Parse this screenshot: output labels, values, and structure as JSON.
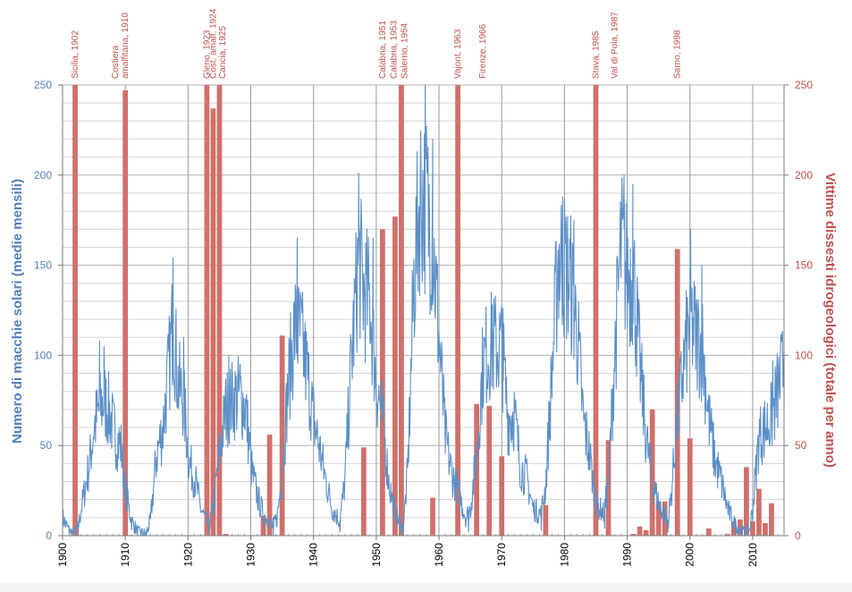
{
  "chart_data": {
    "type": "bar+line",
    "title": "",
    "xlabel": "",
    "ylabel_left": "Numero di macchie solari (medie mensili)",
    "ylabel_right": "Vittime dissesti idrogeologici (totale per anno)",
    "xlim": [
      1900,
      2015
    ],
    "ylim_left": [
      0,
      250
    ],
    "ylim_right": [
      0,
      250
    ],
    "x_ticks": [
      1900,
      1910,
      1920,
      1930,
      1940,
      1950,
      1960,
      1970,
      1980,
      1990,
      2000,
      2010
    ],
    "y_ticks_left": [
      0,
      50,
      100,
      150,
      200,
      250
    ],
    "y_ticks_right": [
      0,
      50,
      100,
      150,
      200,
      250
    ],
    "grid": true,
    "colors": {
      "sunspots": "#5b8fc7",
      "victims": "#d0706a",
      "left_axis": "#4f81bd",
      "right_axis": "#c0504d"
    },
    "series": [
      {
        "kind": "bars",
        "axis": "right",
        "points": [
          {
            "x": 1902,
            "y": 250
          },
          {
            "x": 1910,
            "y": 247
          },
          {
            "x": 1923,
            "y": 250
          },
          {
            "x": 1924,
            "y": 237
          },
          {
            "x": 1925,
            "y": 250
          },
          {
            "x": 1926,
            "y": 1
          },
          {
            "x": 1932,
            "y": 11
          },
          {
            "x": 1933,
            "y": 56
          },
          {
            "x": 1935,
            "y": 111
          },
          {
            "x": 1948,
            "y": 49
          },
          {
            "x": 1951,
            "y": 170
          },
          {
            "x": 1953,
            "y": 177
          },
          {
            "x": 1954,
            "y": 250
          },
          {
            "x": 1959,
            "y": 21
          },
          {
            "x": 1963,
            "y": 250
          },
          {
            "x": 1966,
            "y": 73
          },
          {
            "x": 1968,
            "y": 72
          },
          {
            "x": 1970,
            "y": 44
          },
          {
            "x": 1977,
            "y": 17
          },
          {
            "x": 1985,
            "y": 250
          },
          {
            "x": 1987,
            "y": 53
          },
          {
            "x": 1991,
            "y": 1
          },
          {
            "x": 1992,
            "y": 5
          },
          {
            "x": 1993,
            "y": 3
          },
          {
            "x": 1994,
            "y": 70
          },
          {
            "x": 1995,
            "y": 19
          },
          {
            "x": 1996,
            "y": 19
          },
          {
            "x": 1998,
            "y": 159
          },
          {
            "x": 2000,
            "y": 54
          },
          {
            "x": 2003,
            "y": 4
          },
          {
            "x": 2006,
            "y": 1
          },
          {
            "x": 2007,
            "y": 8
          },
          {
            "x": 2008,
            "y": 9
          },
          {
            "x": 2009,
            "y": 38
          },
          {
            "x": 2010,
            "y": 8
          },
          {
            "x": 2011,
            "y": 26
          },
          {
            "x": 2012,
            "y": 7
          },
          {
            "x": 2013,
            "y": 18
          }
        ]
      },
      {
        "kind": "line",
        "axis": "left",
        "anchors": [
          [
            1900.0,
            10
          ],
          [
            1901.0,
            3
          ],
          [
            1901.8,
            1
          ],
          [
            1902.5,
            5
          ],
          [
            1903.5,
            25
          ],
          [
            1904.3,
            40
          ],
          [
            1905.0,
            60
          ],
          [
            1905.9,
            70
          ],
          [
            1906.6,
            75
          ],
          [
            1907.5,
            68
          ],
          [
            1908.4,
            55
          ],
          [
            1909.3,
            50
          ],
          [
            1910.0,
            25
          ],
          [
            1911.0,
            8
          ],
          [
            1912.0,
            2
          ],
          [
            1913.3,
            1
          ],
          [
            1914.0,
            8
          ],
          [
            1915.0,
            45
          ],
          [
            1916.0,
            60
          ],
          [
            1917.0,
            95
          ],
          [
            1917.6,
            120
          ],
          [
            1918.4,
            85
          ],
          [
            1919.3,
            75
          ],
          [
            1920.2,
            40
          ],
          [
            1921.2,
            30
          ],
          [
            1922.0,
            15
          ],
          [
            1923.3,
            5
          ],
          [
            1924.0,
            15
          ],
          [
            1925.0,
            45
          ],
          [
            1926.0,
            70
          ],
          [
            1927.0,
            75
          ],
          [
            1928.3,
            78
          ],
          [
            1929.2,
            70
          ],
          [
            1930.2,
            35
          ],
          [
            1931.2,
            20
          ],
          [
            1932.0,
            12
          ],
          [
            1933.5,
            5
          ],
          [
            1934.2,
            10
          ],
          [
            1935.0,
            35
          ],
          [
            1936.0,
            85
          ],
          [
            1937.0,
            115
          ],
          [
            1938.0,
            110
          ],
          [
            1939.0,
            90
          ],
          [
            1940.0,
            65
          ],
          [
            1941.0,
            48
          ],
          [
            1942.0,
            30
          ],
          [
            1943.0,
            15
          ],
          [
            1944.2,
            8
          ],
          [
            1945.0,
            30
          ],
          [
            1946.0,
            95
          ],
          [
            1947.2,
            155
          ],
          [
            1948.0,
            135
          ],
          [
            1949.0,
            130
          ],
          [
            1950.0,
            85
          ],
          [
            1951.0,
            65
          ],
          [
            1952.0,
            30
          ],
          [
            1953.0,
            12
          ],
          [
            1954.3,
            4
          ],
          [
            1955.0,
            35
          ],
          [
            1956.0,
            140
          ],
          [
            1957.0,
            190
          ],
          [
            1958.0,
            185
          ],
          [
            1959.0,
            165
          ],
          [
            1960.0,
            110
          ],
          [
            1961.0,
            55
          ],
          [
            1962.0,
            35
          ],
          [
            1963.0,
            25
          ],
          [
            1964.3,
            10
          ],
          [
            1965.0,
            15
          ],
          [
            1966.0,
            45
          ],
          [
            1967.0,
            95
          ],
          [
            1968.0,
            105
          ],
          [
            1969.0,
            105
          ],
          [
            1970.0,
            105
          ],
          [
            1971.0,
            65
          ],
          [
            1972.0,
            68
          ],
          [
            1973.0,
            38
          ],
          [
            1974.0,
            32
          ],
          [
            1975.0,
            15
          ],
          [
            1976.3,
            12
          ],
          [
            1977.0,
            28
          ],
          [
            1978.0,
            90
          ],
          [
            1979.0,
            155
          ],
          [
            1980.0,
            150
          ],
          [
            1981.0,
            140
          ],
          [
            1982.0,
            115
          ],
          [
            1983.0,
            65
          ],
          [
            1984.0,
            45
          ],
          [
            1985.0,
            18
          ],
          [
            1986.3,
            12
          ],
          [
            1987.0,
            30
          ],
          [
            1988.0,
            100
          ],
          [
            1989.0,
            160
          ],
          [
            1990.0,
            145
          ],
          [
            1991.0,
            145
          ],
          [
            1992.0,
            95
          ],
          [
            1993.0,
            55
          ],
          [
            1994.0,
            30
          ],
          [
            1995.0,
            18
          ],
          [
            1996.5,
            8
          ],
          [
            1997.0,
            22
          ],
          [
            1998.0,
            65
          ],
          [
            1999.0,
            95
          ],
          [
            2000.0,
            120
          ],
          [
            2001.0,
            110
          ],
          [
            2002.0,
            105
          ],
          [
            2003.0,
            65
          ],
          [
            2004.0,
            42
          ],
          [
            2005.0,
            30
          ],
          [
            2006.0,
            15
          ],
          [
            2007.0,
            7
          ],
          [
            2008.5,
            2
          ],
          [
            2009.5,
            3
          ],
          [
            2010.0,
            15
          ],
          [
            2011.0,
            55
          ],
          [
            2012.0,
            60
          ],
          [
            2013.0,
            65
          ],
          [
            2014.0,
            80
          ],
          [
            2015.0,
            95
          ]
        ],
        "extremes": [
          [
            1902.5,
            0
          ],
          [
            1905.9,
            108
          ],
          [
            1906.6,
            105
          ],
          [
            1913.3,
            0
          ],
          [
            1917.6,
            154
          ],
          [
            1919.3,
            110
          ],
          [
            1923.4,
            0
          ],
          [
            1926.5,
            100
          ],
          [
            1928.3,
            95
          ],
          [
            1933.6,
            0
          ],
          [
            1937.4,
            165
          ],
          [
            1944.2,
            2
          ],
          [
            1947.2,
            201
          ],
          [
            1949.5,
            165
          ],
          [
            1954.3,
            1
          ],
          [
            1957.8,
            250
          ],
          [
            1959.0,
            220
          ],
          [
            1964.7,
            2
          ],
          [
            1968.5,
            128
          ],
          [
            1970.2,
            126
          ],
          [
            1976.3,
            3
          ],
          [
            1979.7,
            188
          ],
          [
            1981.5,
            175
          ],
          [
            1986.4,
            4
          ],
          [
            1989.5,
            200
          ],
          [
            1990.9,
            195
          ],
          [
            1996.5,
            2
          ],
          [
            2000.1,
            170
          ],
          [
            2001.9,
            150
          ],
          [
            2008.8,
            0
          ],
          [
            2013.2,
            97
          ],
          [
            2014.2,
            90
          ],
          [
            2015.0,
            102
          ]
        ]
      }
    ],
    "annotations": [
      {
        "x": 1902.0,
        "lines": [
          "Sicilia, 1902"
        ]
      },
      {
        "x": 1910.0,
        "lines": [
          "Costiera",
          "amalfitana, 1910"
        ]
      },
      {
        "x": 1923.0,
        "lines": [
          "Gleno, 1923"
        ]
      },
      {
        "x": 1924.0,
        "lines": [
          "Cost. amalf. 1924"
        ]
      },
      {
        "x": 1925.5,
        "lines": [
          "Cancia, 1925"
        ]
      },
      {
        "x": 1951.0,
        "lines": [
          "Calabria, 1951"
        ]
      },
      {
        "x": 1952.8,
        "lines": [
          "Calabria, 1953"
        ]
      },
      {
        "x": 1954.5,
        "lines": [
          "Salerno, 1954"
        ]
      },
      {
        "x": 1963.0,
        "lines": [
          "Vajont, 1963"
        ]
      },
      {
        "x": 1967.0,
        "lines": [
          "Firenze, 1966"
        ]
      },
      {
        "x": 1985.0,
        "lines": [
          "Stava, 1985"
        ]
      },
      {
        "x": 1988.0,
        "lines": [
          "Val di Pola, 1987"
        ]
      },
      {
        "x": 1998.0,
        "lines": [
          "Sarno, 1998"
        ]
      }
    ]
  }
}
